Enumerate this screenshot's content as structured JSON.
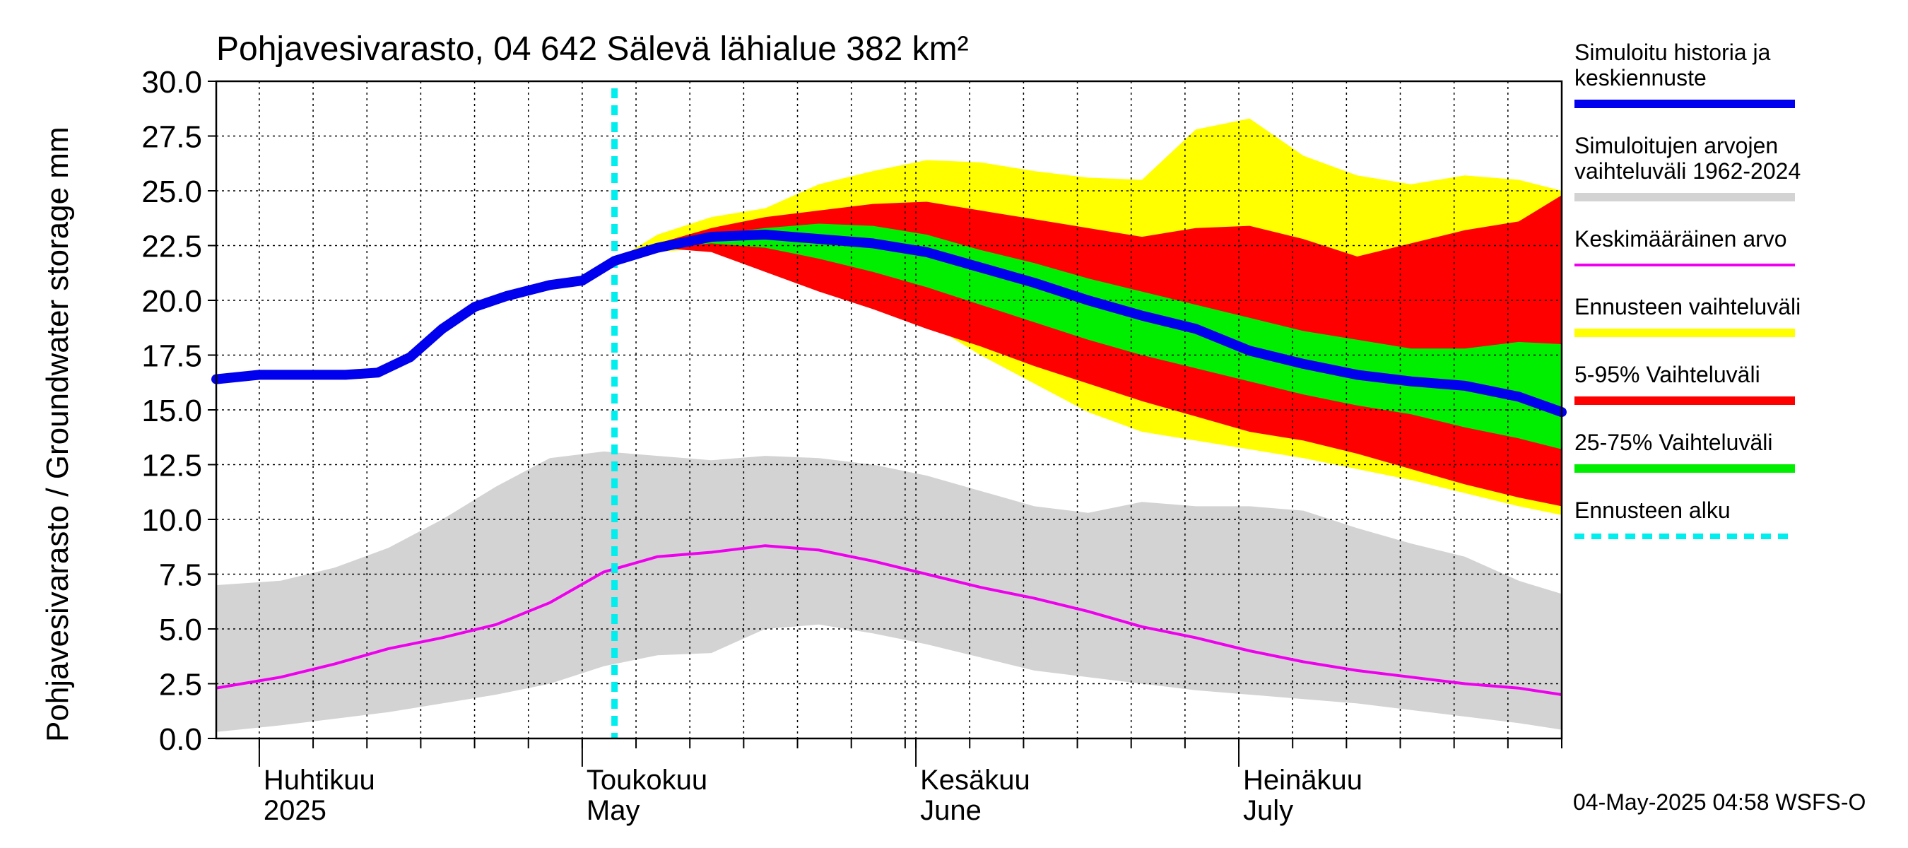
{
  "chart_data": {
    "type": "area",
    "title": "Pohjavesivarasto, 04 642 Sälevä lähialue 382 km²",
    "ylabel": "Pohjavesivarasto / Groundwater storage   mm",
    "ylim": [
      0,
      30
    ],
    "xlim": [
      "2025-03-28",
      "2025-07-31"
    ],
    "yticks": [
      "0.0",
      "2.5",
      "5.0",
      "7.5",
      "10.0",
      "12.5",
      "15.0",
      "17.5",
      "20.0",
      "22.5",
      "25.0",
      "27.5",
      "30.0"
    ],
    "grid": true,
    "legend_position": "right",
    "months": [
      {
        "fi": "Huhtikuu",
        "en": "2025",
        "date": "2025-04-01"
      },
      {
        "fi": "Toukokuu",
        "en": "May",
        "date": "2025-05-01"
      },
      {
        "fi": "Kesäkuu",
        "en": "June",
        "date": "2025-06-01"
      },
      {
        "fi": "Heinäkuu",
        "en": "July",
        "date": "2025-07-01"
      }
    ],
    "forecast_start": "2025-05-04",
    "legend": [
      {
        "label": "Simuloitu historia ja keskiennuste",
        "color": "#0000ee",
        "kind": "thick"
      },
      {
        "label": "Simuloitujen arvojen vaihteluväli 1962-2024",
        "color": "#d3d3d3",
        "kind": "thick"
      },
      {
        "label": "Keskimääräinen arvo",
        "color": "#ee00ee",
        "kind": "thin"
      },
      {
        "label": "Ennusteen vaihteluväli",
        "color": "#ffff00",
        "kind": "thick"
      },
      {
        "label": "5-95% Vaihteluväli",
        "color": "#ff0000",
        "kind": "thick"
      },
      {
        "label": "25-75% Vaihteluväli",
        "color": "#00ee00",
        "kind": "thick"
      },
      {
        "label": "Ennusteen alku",
        "color": "#00eeee",
        "kind": "dashed"
      }
    ],
    "footer": "04-May-2025 04:58 WSFS-O",
    "series": {
      "history_range": {
        "x": [
          "2025-03-28",
          "2025-04-03",
          "2025-04-08",
          "2025-04-13",
          "2025-04-18",
          "2025-04-23",
          "2025-04-28",
          "2025-05-03",
          "2025-05-08",
          "2025-05-13",
          "2025-05-18",
          "2025-05-23",
          "2025-05-28",
          "2025-06-02",
          "2025-06-07",
          "2025-06-12",
          "2025-06-17",
          "2025-06-22",
          "2025-06-27",
          "2025-07-02",
          "2025-07-07",
          "2025-07-12",
          "2025-07-17",
          "2025-07-22",
          "2025-07-27",
          "2025-07-31"
        ],
        "upper": [
          7.0,
          7.2,
          7.8,
          8.7,
          10.0,
          11.5,
          12.8,
          13.1,
          12.9,
          12.7,
          12.9,
          12.8,
          12.5,
          12.0,
          11.3,
          10.6,
          10.3,
          10.8,
          10.6,
          10.6,
          10.4,
          9.6,
          8.9,
          8.3,
          7.2,
          6.6
        ],
        "lower": [
          0.3,
          0.6,
          0.9,
          1.2,
          1.6,
          2.0,
          2.5,
          3.3,
          3.8,
          3.9,
          5.0,
          5.2,
          4.8,
          4.3,
          3.7,
          3.1,
          2.8,
          2.5,
          2.2,
          2.0,
          1.8,
          1.6,
          1.3,
          1.0,
          0.7,
          0.4
        ]
      },
      "mean": {
        "x": [
          "2025-03-28",
          "2025-04-03",
          "2025-04-08",
          "2025-04-13",
          "2025-04-18",
          "2025-04-23",
          "2025-04-28",
          "2025-05-03",
          "2025-05-08",
          "2025-05-13",
          "2025-05-18",
          "2025-05-23",
          "2025-05-28",
          "2025-06-02",
          "2025-06-07",
          "2025-06-12",
          "2025-06-17",
          "2025-06-22",
          "2025-06-27",
          "2025-07-02",
          "2025-07-07",
          "2025-07-12",
          "2025-07-17",
          "2025-07-22",
          "2025-07-27",
          "2025-07-31"
        ],
        "values": [
          2.3,
          2.8,
          3.4,
          4.1,
          4.6,
          5.2,
          6.2,
          7.6,
          8.3,
          8.5,
          8.8,
          8.6,
          8.1,
          7.5,
          6.9,
          6.4,
          5.8,
          5.1,
          4.6,
          4.0,
          3.5,
          3.1,
          2.8,
          2.5,
          2.3,
          2.0
        ]
      },
      "simulated": {
        "x": [
          "2025-03-28",
          "2025-04-01",
          "2025-04-05",
          "2025-04-09",
          "2025-04-12",
          "2025-04-15",
          "2025-04-18",
          "2025-04-21",
          "2025-04-24",
          "2025-04-28",
          "2025-05-01",
          "2025-05-04",
          "2025-05-08",
          "2025-05-13",
          "2025-05-18",
          "2025-05-23",
          "2025-05-28",
          "2025-06-02",
          "2025-06-07",
          "2025-06-12",
          "2025-06-17",
          "2025-06-22",
          "2025-06-27",
          "2025-07-02",
          "2025-07-07",
          "2025-07-12",
          "2025-07-17",
          "2025-07-22",
          "2025-07-27",
          "2025-07-31"
        ],
        "values": [
          16.4,
          16.6,
          16.6,
          16.6,
          16.7,
          17.4,
          18.7,
          19.7,
          20.2,
          20.7,
          20.9,
          21.8,
          22.4,
          22.9,
          23.0,
          22.8,
          22.6,
          22.2,
          21.5,
          20.8,
          20.0,
          19.3,
          18.7,
          17.7,
          17.1,
          16.6,
          16.3,
          16.1,
          15.6,
          14.9
        ]
      },
      "forecast_full": {
        "x": [
          "2025-05-04",
          "2025-05-08",
          "2025-05-13",
          "2025-05-18",
          "2025-05-23",
          "2025-05-28",
          "2025-06-02",
          "2025-06-07",
          "2025-06-12",
          "2025-06-17",
          "2025-06-22",
          "2025-06-27",
          "2025-07-02",
          "2025-07-07",
          "2025-07-12",
          "2025-07-17",
          "2025-07-22",
          "2025-07-27",
          "2025-07-31"
        ],
        "upper": [
          21.8,
          23.0,
          23.8,
          24.2,
          25.3,
          25.9,
          26.4,
          26.3,
          25.9,
          25.6,
          25.5,
          27.8,
          28.3,
          26.6,
          25.7,
          25.3,
          25.7,
          25.5,
          25.0
        ],
        "lower": [
          21.8,
          22.2,
          22.4,
          21.7,
          20.6,
          19.8,
          19.0,
          17.5,
          16.2,
          14.9,
          14.0,
          13.6,
          13.2,
          12.8,
          12.3,
          11.8,
          11.2,
          10.6,
          10.2
        ]
      },
      "forecast_p5_95": {
        "x": [
          "2025-05-04",
          "2025-05-08",
          "2025-05-13",
          "2025-05-18",
          "2025-05-23",
          "2025-05-28",
          "2025-06-02",
          "2025-06-07",
          "2025-06-12",
          "2025-06-17",
          "2025-06-22",
          "2025-06-27",
          "2025-07-02",
          "2025-07-07",
          "2025-07-12",
          "2025-07-17",
          "2025-07-22",
          "2025-07-27",
          "2025-07-31"
        ],
        "upper": [
          21.8,
          22.6,
          23.3,
          23.8,
          24.1,
          24.4,
          24.5,
          24.1,
          23.7,
          23.3,
          22.9,
          23.3,
          23.4,
          22.8,
          22.0,
          22.6,
          23.2,
          23.6,
          24.8
        ],
        "lower": [
          21.8,
          22.4,
          22.2,
          21.3,
          20.4,
          19.6,
          18.7,
          17.9,
          17.0,
          16.2,
          15.4,
          14.7,
          14.0,
          13.6,
          13.0,
          12.3,
          11.6,
          11.0,
          10.6
        ]
      },
      "forecast_p25_75": {
        "x": [
          "2025-05-04",
          "2025-05-08",
          "2025-05-13",
          "2025-05-18",
          "2025-05-23",
          "2025-05-28",
          "2025-06-02",
          "2025-06-07",
          "2025-06-12",
          "2025-06-17",
          "2025-06-22",
          "2025-06-27",
          "2025-07-02",
          "2025-07-07",
          "2025-07-12",
          "2025-07-17",
          "2025-07-22",
          "2025-07-27",
          "2025-07-31"
        ],
        "upper": [
          21.8,
          22.5,
          23.0,
          23.3,
          23.5,
          23.4,
          23.0,
          22.3,
          21.7,
          21.0,
          20.4,
          19.8,
          19.2,
          18.6,
          18.2,
          17.8,
          17.8,
          18.1,
          18.0
        ],
        "lower": [
          21.8,
          22.4,
          22.6,
          22.4,
          21.9,
          21.3,
          20.6,
          19.8,
          19.0,
          18.2,
          17.5,
          16.9,
          16.3,
          15.7,
          15.2,
          14.8,
          14.2,
          13.7,
          13.2
        ]
      }
    }
  }
}
